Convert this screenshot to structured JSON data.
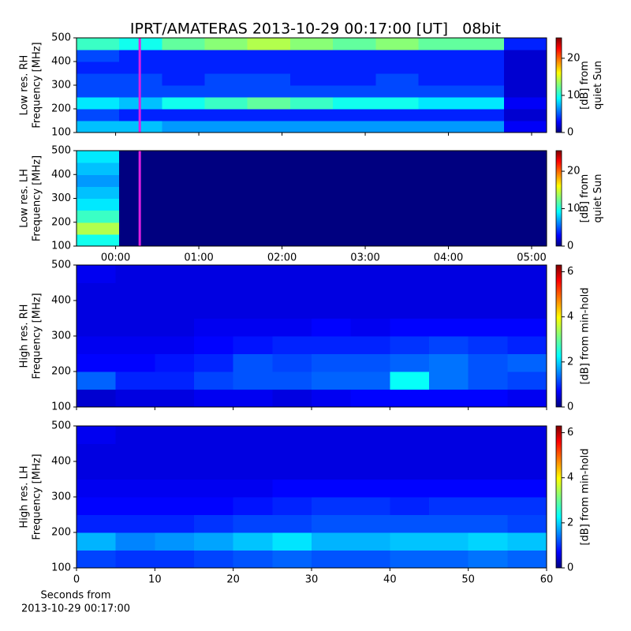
{
  "title": "IPRT/AMATERAS 2013-10-29 00:17:00 [UT]   08bit",
  "footer": [
    "Seconds from",
    "2013-10-29 00:17:00"
  ],
  "chart_data": [
    {
      "type": "heatmap",
      "ylabel": [
        "Low res. RH",
        "Frequency [MHz]"
      ],
      "xlim": [
        -0.47,
        5.18
      ],
      "ylim": [
        100,
        500
      ],
      "yticks": [
        100,
        200,
        300,
        400,
        500
      ],
      "clim": [
        0,
        25.5
      ],
      "cticks": [
        0,
        10,
        20
      ],
      "clabel": [
        "[dB] from",
        "quiet Sun"
      ],
      "colormap": "jet",
      "marker_x": 0.29,
      "marker_color": "#e020e0",
      "z": [
        [
          8,
          8,
          7,
          7,
          7,
          7,
          7,
          7,
          7,
          7,
          3
        ],
        [
          5,
          4,
          4,
          4,
          4,
          4,
          4,
          4,
          4,
          4,
          2
        ],
        [
          9,
          8,
          10,
          11,
          12,
          11,
          10,
          10,
          9,
          9,
          3
        ],
        [
          5,
          5,
          5,
          5,
          5,
          5,
          5,
          5,
          5,
          5,
          2
        ],
        [
          5,
          5,
          4,
          5,
          5,
          4,
          4,
          5,
          4,
          4,
          2
        ],
        [
          4,
          4,
          4,
          4,
          4,
          4,
          4,
          4,
          4,
          4,
          2
        ],
        [
          5,
          4,
          4,
          4,
          4,
          4,
          4,
          4,
          4,
          4,
          2
        ],
        [
          11,
          10,
          12,
          13,
          14,
          13,
          12,
          13,
          12,
          12,
          4
        ]
      ]
    },
    {
      "type": "heatmap",
      "ylabel": [
        "Low res. LH",
        "Frequency [MHz]"
      ],
      "xlim": [
        -0.47,
        5.18
      ],
      "ylim": [
        100,
        500
      ],
      "yticks": [
        100,
        200,
        300,
        400,
        500
      ],
      "xticks": [
        {
          "value": 0,
          "label": "00:00"
        },
        {
          "value": 1,
          "label": "01:00"
        },
        {
          "value": 2,
          "label": "02:00"
        },
        {
          "value": 3,
          "label": "03:00"
        },
        {
          "value": 4,
          "label": "04:00"
        },
        {
          "value": 5,
          "label": "05:00"
        }
      ],
      "clim": [
        0,
        25.5
      ],
      "cticks": [
        0,
        10,
        20
      ],
      "clabel": [
        "[dB] from",
        "quiet Sun"
      ],
      "colormap": "jet",
      "marker_x": 0.29,
      "marker_color": "#e020e0",
      "z": [
        [
          10,
          0,
          0,
          0,
          0,
          0,
          0,
          0,
          0,
          0,
          0
        ],
        [
          14,
          0,
          0,
          0,
          0,
          0,
          0,
          0,
          0,
          0,
          0
        ],
        [
          11,
          0,
          0,
          0,
          0,
          0,
          0,
          0,
          0,
          0,
          0
        ],
        [
          9,
          0,
          0,
          0,
          0,
          0,
          0,
          0,
          0,
          0,
          0
        ],
        [
          8,
          0,
          0,
          0,
          0,
          0,
          0,
          0,
          0,
          0,
          0
        ],
        [
          7,
          0,
          0,
          0,
          0,
          0,
          0,
          0,
          0,
          0,
          0
        ],
        [
          8,
          0,
          0,
          0,
          0,
          0,
          0,
          0,
          0,
          0,
          0
        ],
        [
          9,
          0,
          0,
          0,
          0,
          0,
          0,
          0,
          0,
          0,
          0
        ]
      ]
    },
    {
      "type": "heatmap",
      "ylabel": [
        "High res. RH",
        "Frequency [MHz]"
      ],
      "xlim": [
        0,
        60
      ],
      "ylim": [
        100,
        500
      ],
      "yticks": [
        100,
        200,
        300,
        400,
        500
      ],
      "clim": [
        0,
        6.3
      ],
      "cticks": [
        0,
        2,
        4,
        6
      ],
      "clabel": [
        "[dB] from min-hold"
      ],
      "colormap": "jet",
      "z": [
        [
          0.5,
          0.6,
          0.6,
          0.7,
          0.7,
          0.6,
          0.7,
          0.8,
          0.8,
          0.8,
          0.8,
          0.7
        ],
        [
          1.4,
          1.0,
          1.0,
          1.2,
          1.3,
          1.3,
          1.4,
          1.4,
          2.4,
          1.5,
          1.3,
          1.2
        ],
        [
          0.8,
          0.8,
          0.9,
          1.0,
          1.3,
          1.2,
          1.3,
          1.3,
          1.4,
          1.5,
          1.3,
          1.4
        ],
        [
          0.7,
          0.7,
          0.7,
          0.8,
          0.9,
          1.0,
          1.0,
          1.0,
          1.1,
          1.2,
          1.1,
          1.0
        ],
        [
          0.6,
          0.6,
          0.6,
          0.7,
          0.7,
          0.7,
          0.8,
          0.7,
          0.8,
          0.8,
          0.8,
          0.8
        ],
        [
          0.6,
          0.6,
          0.6,
          0.6,
          0.6,
          0.6,
          0.6,
          0.6,
          0.6,
          0.6,
          0.6,
          0.6
        ],
        [
          0.6,
          0.6,
          0.6,
          0.6,
          0.6,
          0.6,
          0.6,
          0.6,
          0.6,
          0.6,
          0.6,
          0.6
        ],
        [
          0.7,
          0.6,
          0.6,
          0.6,
          0.6,
          0.6,
          0.6,
          0.6,
          0.6,
          0.6,
          0.6,
          0.6
        ]
      ]
    },
    {
      "type": "heatmap",
      "ylabel": [
        "High res. LH",
        "Frequency [MHz]"
      ],
      "xlim": [
        0,
        60
      ],
      "ylim": [
        100,
        500
      ],
      "yticks": [
        100,
        200,
        300,
        400,
        500
      ],
      "xticks": [
        0,
        10,
        20,
        30,
        40,
        50,
        60
      ],
      "clim": [
        0,
        6.3
      ],
      "cticks": [
        0,
        2,
        4,
        6
      ],
      "clabel": [
        "[dB] from min-hold"
      ],
      "colormap": "jet",
      "z": [
        [
          1.2,
          1.1,
          1.1,
          1.2,
          1.3,
          1.4,
          1.3,
          1.3,
          1.4,
          1.4,
          1.5,
          1.4
        ],
        [
          1.9,
          1.6,
          1.7,
          1.8,
          2.0,
          2.2,
          1.9,
          1.9,
          2.0,
          2.0,
          2.1,
          2.0
        ],
        [
          1.0,
          1.0,
          1.0,
          1.1,
          1.2,
          1.2,
          1.3,
          1.3,
          1.3,
          1.3,
          1.3,
          1.2
        ],
        [
          0.8,
          0.8,
          0.8,
          0.8,
          0.9,
          1.0,
          1.1,
          1.1,
          1.0,
          1.1,
          1.1,
          1.1
        ],
        [
          0.7,
          0.7,
          0.7,
          0.7,
          0.7,
          0.8,
          0.8,
          0.8,
          0.8,
          0.8,
          0.8,
          0.8
        ],
        [
          0.6,
          0.6,
          0.6,
          0.6,
          0.6,
          0.6,
          0.6,
          0.6,
          0.6,
          0.6,
          0.6,
          0.6
        ],
        [
          0.6,
          0.6,
          0.6,
          0.6,
          0.6,
          0.6,
          0.6,
          0.6,
          0.6,
          0.6,
          0.6,
          0.6
        ],
        [
          0.7,
          0.6,
          0.6,
          0.6,
          0.6,
          0.6,
          0.6,
          0.6,
          0.6,
          0.6,
          0.6,
          0.6
        ]
      ]
    }
  ]
}
